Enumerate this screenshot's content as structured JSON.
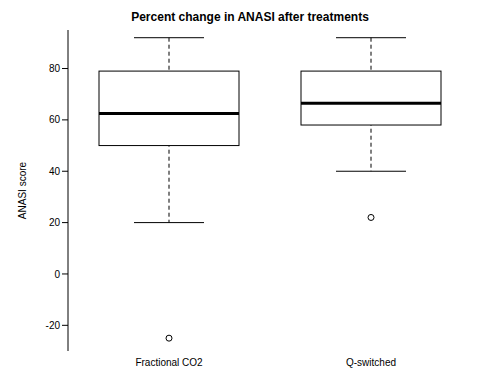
{
  "chart_data": {
    "type": "box",
    "title": "Percent change in ANASI after treatments",
    "y_label": "ANASI score",
    "categories": [
      "Fractional CO2",
      "Q-switched"
    ],
    "boxes": [
      {
        "min": 20,
        "q1": 50,
        "median": 62.5,
        "q3": 79,
        "max": 92,
        "outliers": [
          -25
        ]
      },
      {
        "min": 40,
        "q1": 58,
        "median": 66.5,
        "q3": 79,
        "max": 92,
        "outliers": [
          22
        ]
      }
    ],
    "ylim": [
      -30,
      95
    ],
    "yticks": [
      -20,
      0,
      20,
      40,
      60,
      80
    ]
  }
}
